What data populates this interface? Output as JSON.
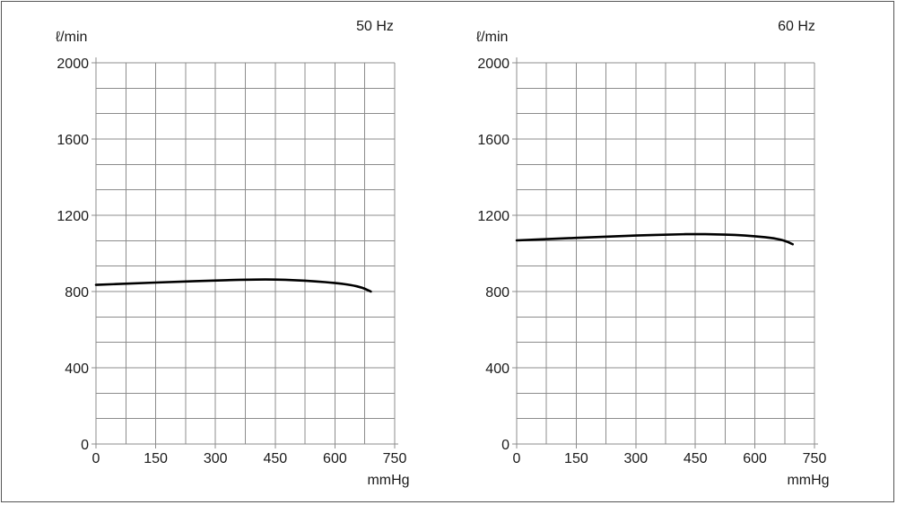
{
  "chart_data": [
    {
      "type": "line",
      "title": "50 Hz",
      "xlabel": "mmHg",
      "ylabel": "ℓ/min",
      "xlim": [
        0,
        750
      ],
      "ylim": [
        0,
        2000
      ],
      "x_ticks": [
        "0",
        "150",
        "300",
        "450",
        "600",
        "750"
      ],
      "y_ticks": [
        "0",
        "400",
        "800",
        "1200",
        "1600",
        "2000"
      ],
      "grid": true,
      "series": [
        {
          "x": [
            0,
            100,
            200,
            300,
            400,
            450,
            500,
            550,
            600,
            640,
            670,
            690
          ],
          "y": [
            835,
            843,
            851,
            858,
            863,
            863,
            860,
            854,
            845,
            835,
            820,
            800
          ]
        }
      ]
    },
    {
      "type": "line",
      "title": "60 Hz",
      "xlabel": "mmHg",
      "ylabel": "ℓ/min",
      "xlim": [
        0,
        750
      ],
      "ylim": [
        0,
        2000
      ],
      "x_ticks": [
        "0",
        "150",
        "300",
        "450",
        "600",
        "750"
      ],
      "y_ticks": [
        "0",
        "400",
        "800",
        "1200",
        "1600",
        "2000"
      ],
      "grid": true,
      "series": [
        {
          "x": [
            0,
            100,
            200,
            300,
            400,
            450,
            500,
            550,
            600,
            650,
            680,
            695
          ],
          "y": [
            1068,
            1077,
            1086,
            1094,
            1100,
            1101,
            1100,
            1097,
            1090,
            1080,
            1063,
            1048
          ]
        }
      ]
    }
  ]
}
